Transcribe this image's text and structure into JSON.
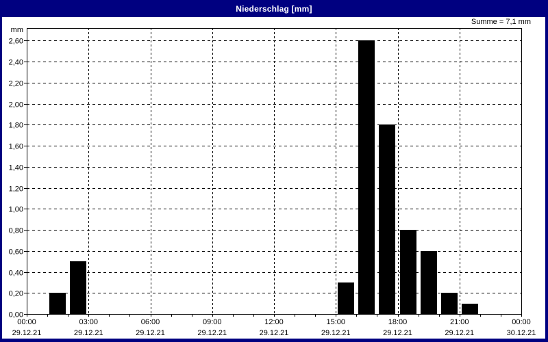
{
  "window": {
    "title": "Niederschlag [mm]",
    "title_bar_color": "#000080"
  },
  "chart_data": {
    "type": "bar",
    "title": "Niederschlag [mm]",
    "unit_label": "mm",
    "sum_label": "Summe = 7,1 mm",
    "sum_mm": 7.1,
    "ylim": [
      0,
      2.72
    ],
    "x_range_hours": [
      0,
      24
    ],
    "minor_x_tick_every_hours": 1,
    "grid": "dashed",
    "legend": "none",
    "colors": {
      "bar": "#000000",
      "grid": "#000000",
      "text": "#000000",
      "background": "#ffffff",
      "titlebar": "#000080"
    },
    "y_ticks": [
      {
        "value": 0.0,
        "label": "0,00"
      },
      {
        "value": 0.2,
        "label": "0,20"
      },
      {
        "value": 0.4,
        "label": "0,40"
      },
      {
        "value": 0.6,
        "label": "0,60"
      },
      {
        "value": 0.8,
        "label": "0,80"
      },
      {
        "value": 1.0,
        "label": "1,00"
      },
      {
        "value": 1.2,
        "label": "1,20"
      },
      {
        "value": 1.4,
        "label": "1,40"
      },
      {
        "value": 1.6,
        "label": "1,60"
      },
      {
        "value": 1.8,
        "label": "1,80"
      },
      {
        "value": 2.0,
        "label": "2,00"
      },
      {
        "value": 2.2,
        "label": "2,20"
      },
      {
        "value": 2.4,
        "label": "2,40"
      },
      {
        "value": 2.6,
        "label": "2,60"
      }
    ],
    "x_ticks": [
      {
        "hour": 0,
        "time": "00:00",
        "date": "29.12.21"
      },
      {
        "hour": 3,
        "time": "03:00",
        "date": "29.12.21"
      },
      {
        "hour": 6,
        "time": "06:00",
        "date": "29.12.21"
      },
      {
        "hour": 9,
        "time": "09:00",
        "date": "29.12.21"
      },
      {
        "hour": 12,
        "time": "12:00",
        "date": "29.12.21"
      },
      {
        "hour": 15,
        "time": "15:00",
        "date": "29.12.21"
      },
      {
        "hour": 18,
        "time": "18:00",
        "date": "29.12.21"
      },
      {
        "hour": 21,
        "time": "21:00",
        "date": "29.12.21"
      },
      {
        "hour": 24,
        "time": "00:00",
        "date": "30.12.21"
      }
    ],
    "bars": [
      {
        "start_hour": 1,
        "end_hour": 2,
        "value": 0.2
      },
      {
        "start_hour": 2,
        "end_hour": 3,
        "value": 0.5
      },
      {
        "start_hour": 15,
        "end_hour": 16,
        "value": 0.3
      },
      {
        "start_hour": 16,
        "end_hour": 17,
        "value": 2.6
      },
      {
        "start_hour": 17,
        "end_hour": 18,
        "value": 1.8
      },
      {
        "start_hour": 18,
        "end_hour": 19,
        "value": 0.8
      },
      {
        "start_hour": 19,
        "end_hour": 20,
        "value": 0.6
      },
      {
        "start_hour": 20,
        "end_hour": 21,
        "value": 0.2
      },
      {
        "start_hour": 21,
        "end_hour": 22,
        "value": 0.1
      }
    ]
  }
}
